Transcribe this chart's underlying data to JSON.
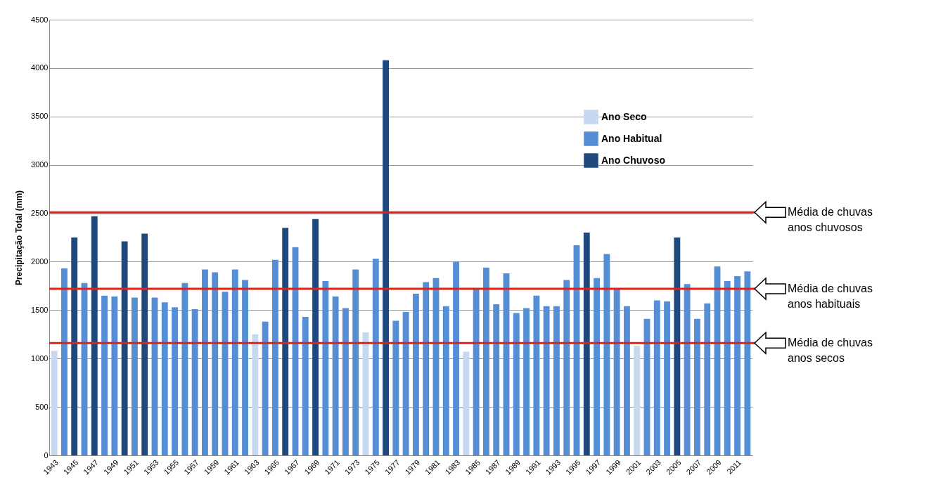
{
  "chart_data": {
    "type": "bar",
    "ylabel": "Precipitação Total (mm)",
    "legend": "top right",
    "grid": "y",
    "categories": [
      "1943",
      null,
      "1945",
      null,
      "1947",
      null,
      "1949",
      null,
      "1951",
      null,
      "1953",
      null,
      "1955",
      null,
      "1957",
      null,
      "1959",
      null,
      "1961",
      null,
      "1963",
      null,
      "1965",
      null,
      "1967",
      null,
      "1969",
      null,
      "1971",
      null,
      "1973",
      null,
      "1975",
      null,
      "1977",
      null,
      "1979",
      null,
      "1981",
      null,
      "1983",
      null,
      "1985",
      null,
      "1987",
      null,
      "1989",
      null,
      "1991",
      null,
      "1993",
      null,
      "1995",
      null,
      "1997",
      null,
      "1999",
      null,
      "2001",
      null,
      "2003",
      null,
      "2005",
      null,
      "2007",
      null,
      "2009",
      null,
      "2011",
      null
    ],
    "ylim": [
      0,
      4500
    ],
    "yticks": [
      0,
      500,
      1000,
      1500,
      2000,
      2500,
      3000,
      3500,
      4000,
      4500
    ],
    "series": [
      {
        "name": "Ano Seco",
        "color": "#c6d9f1",
        "values": [
          1080,
          null,
          null,
          null,
          null,
          null,
          null,
          null,
          null,
          null,
          null,
          null,
          null,
          null,
          null,
          null,
          null,
          null,
          null,
          null,
          1250,
          null,
          null,
          null,
          null,
          null,
          null,
          null,
          null,
          null,
          null,
          1270,
          null,
          null,
          null,
          null,
          null,
          null,
          null,
          null,
          null,
          1070,
          null,
          null,
          null,
          null,
          null,
          null,
          null,
          null,
          null,
          null,
          null,
          null,
          null,
          null,
          null,
          null,
          1130,
          null,
          null,
          null,
          null,
          null,
          null,
          null,
          null,
          null,
          null,
          null
        ]
      },
      {
        "name": "Ano Habitual",
        "color": "#558ed5",
        "values": [
          null,
          1930,
          null,
          1780,
          null,
          1650,
          1640,
          null,
          1630,
          null,
          1630,
          1580,
          1530,
          1780,
          1510,
          1920,
          1890,
          1690,
          1920,
          1810,
          null,
          1380,
          2020,
          null,
          2150,
          1430,
          null,
          1800,
          1640,
          1520,
          1920,
          null,
          2030,
          null,
          1390,
          1480,
          1670,
          1790,
          1830,
          1540,
          2000,
          null,
          1720,
          1940,
          1560,
          1880,
          1470,
          1520,
          1650,
          1540,
          1540,
          1810,
          2170,
          null,
          1830,
          2080,
          1720,
          1540,
          null,
          1410,
          1600,
          1590,
          null,
          1770,
          1410,
          1570,
          1950,
          1800,
          1850,
          1900
        ]
      },
      {
        "name": "Ano Chuvoso",
        "color": "#1f497d",
        "values": [
          null,
          null,
          2250,
          null,
          2470,
          null,
          null,
          2210,
          null,
          2290,
          null,
          null,
          null,
          null,
          null,
          null,
          null,
          null,
          null,
          null,
          null,
          null,
          null,
          2350,
          null,
          null,
          2440,
          null,
          null,
          null,
          null,
          null,
          null,
          4080,
          null,
          null,
          null,
          null,
          null,
          null,
          null,
          null,
          null,
          null,
          null,
          null,
          null,
          null,
          null,
          null,
          null,
          null,
          null,
          2300,
          null,
          null,
          null,
          null,
          null,
          null,
          null,
          null,
          2250,
          null,
          null,
          null,
          null,
          null,
          null,
          null
        ]
      }
    ],
    "ref_lines": [
      {
        "axis": "y",
        "value": 2510,
        "label": "Média de chuvas anos chuvosos",
        "color": "#e0201b"
      },
      {
        "axis": "y",
        "value": 1720,
        "label": "Média de chuvas anos habituais",
        "color": "#e0201b"
      },
      {
        "axis": "y",
        "value": 1160,
        "label": "Média de chuvas anos secos",
        "color": "#e0201b"
      }
    ]
  }
}
